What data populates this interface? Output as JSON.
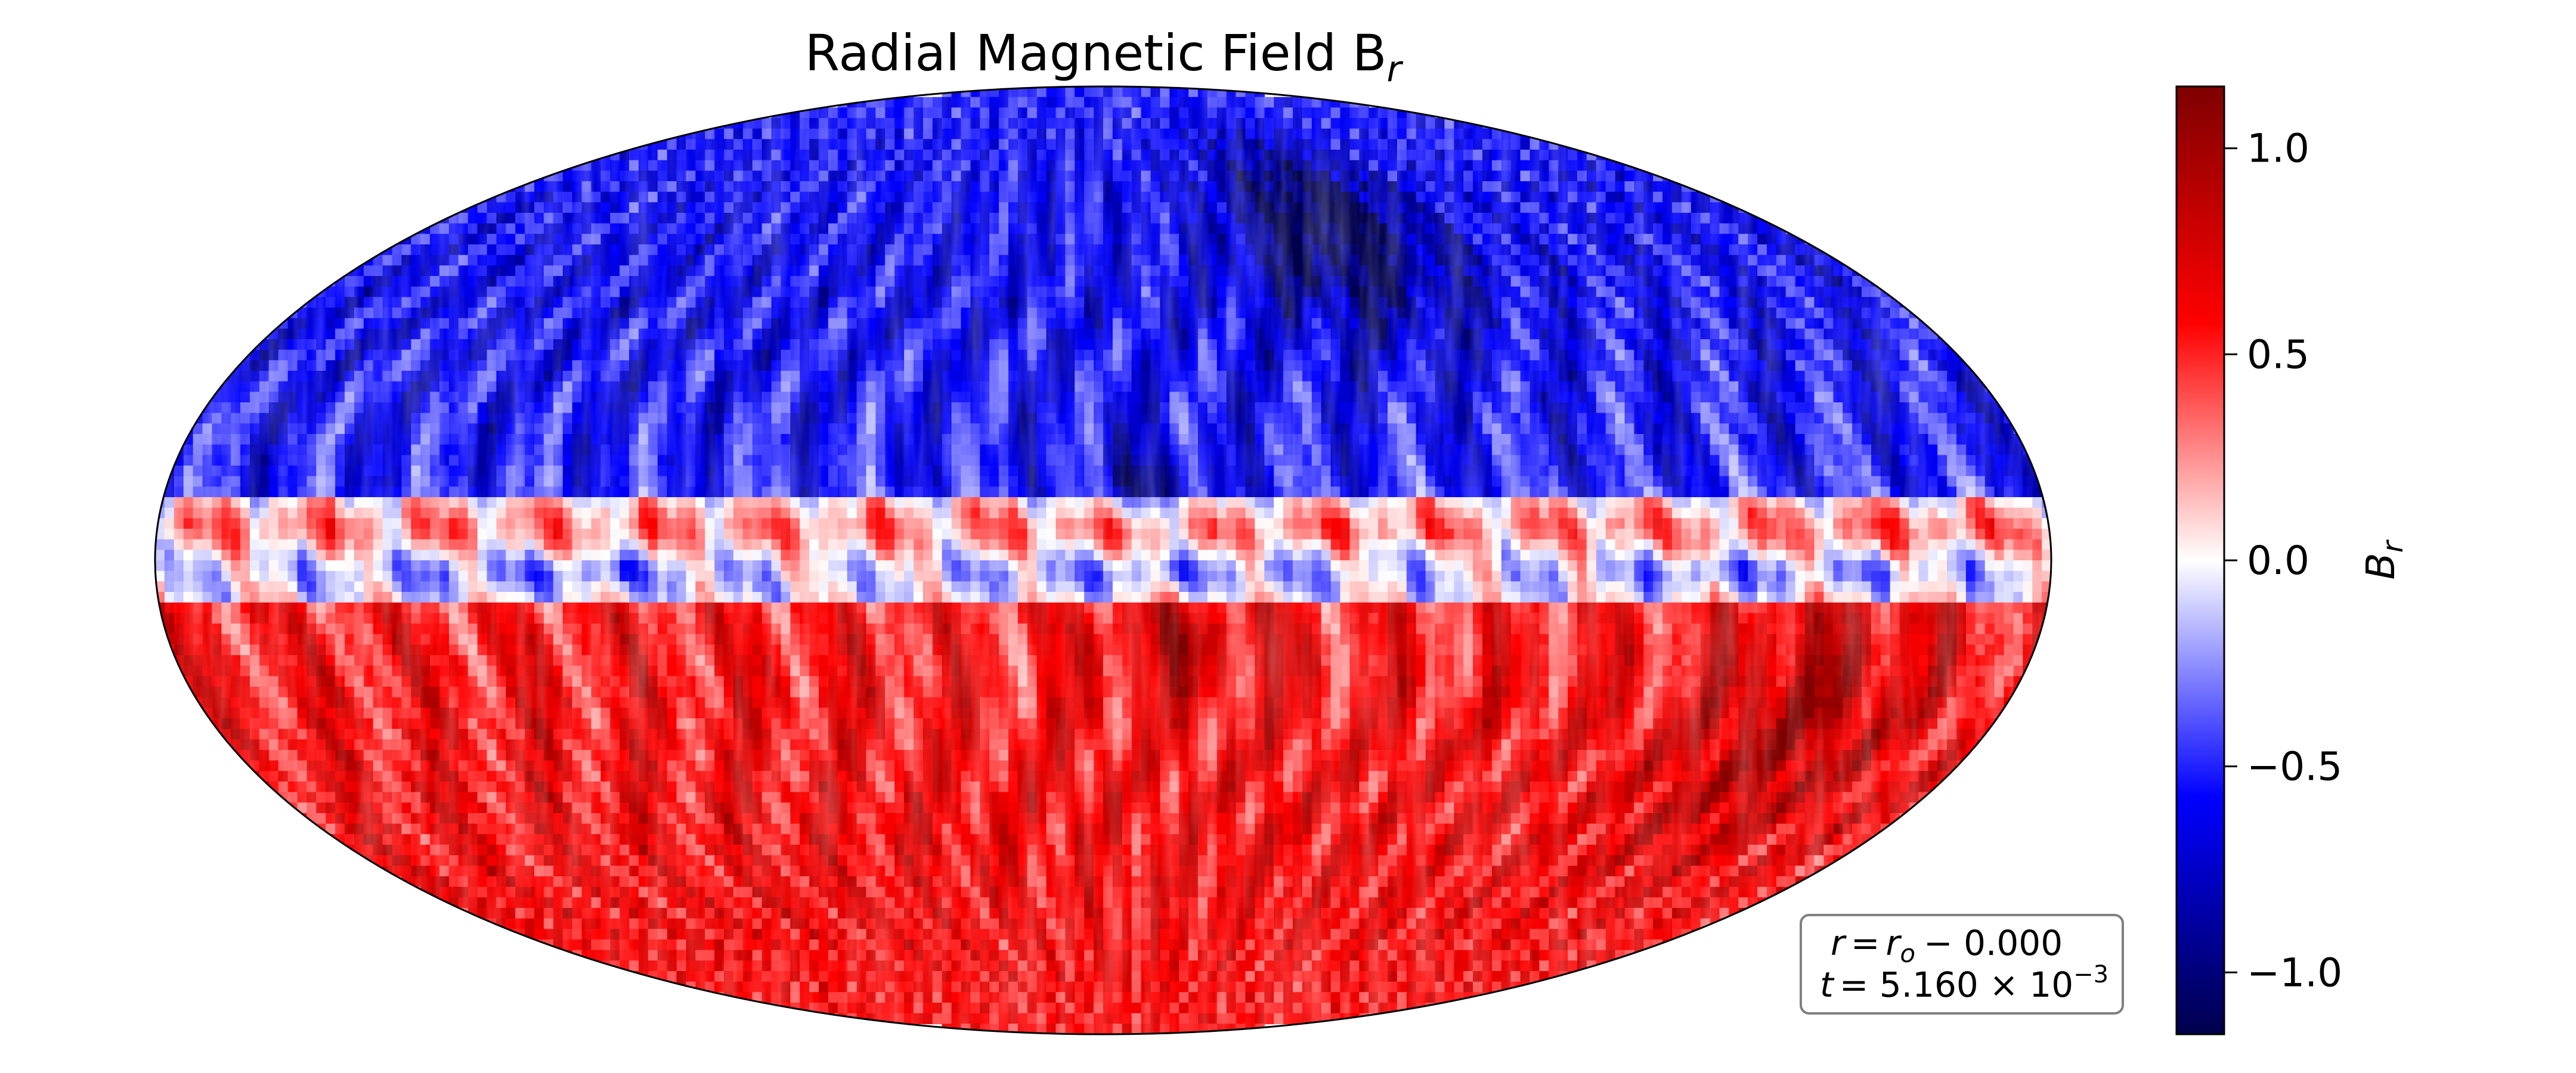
{
  "chart_data": {
    "type": "heatmap",
    "projection": "mollweide",
    "title": "Radial Magnetic Field B",
    "title_subscript": "r",
    "colormap": "seismic",
    "colormap_stops": [
      "#00004c",
      "#0000ff",
      "#ffffff",
      "#ff0000",
      "#7f0000"
    ],
    "vmin": -1.15,
    "vmax": 1.15,
    "colorbar": {
      "label": "B",
      "label_subscript": "r",
      "ticks": [
        1.0,
        0.5,
        0.0,
        -0.5,
        -1.0
      ],
      "tick_labels": [
        "1.0",
        "0.5",
        "0.0",
        "−0.5",
        "−1.0"
      ]
    },
    "field_pattern": {
      "north_hemisphere_sign": "negative",
      "south_hemisphere_sign": "positive",
      "equatorial_band": [
        {
          "latitude_deg": 5,
          "mean_value": 0.3
        },
        {
          "latitude_deg": -2,
          "mean_value": -0.2
        }
      ],
      "strongest_negative_near": {
        "lon_deg": 60,
        "lat_deg": 55,
        "value": -1.1
      },
      "strongest_positive_near": {
        "lon_deg": 140,
        "lat_deg": -25,
        "value": 0.85
      }
    },
    "annotation": {
      "line1_lhs": "r",
      "line1_eq": "=",
      "line1_rhs": "r",
      "line1_rhs_sub": "o",
      "line1_tail": "−  0.000",
      "line2_lhs": "t",
      "line2_eq": "= 5.160 × 10",
      "line2_exp": "−3"
    }
  }
}
